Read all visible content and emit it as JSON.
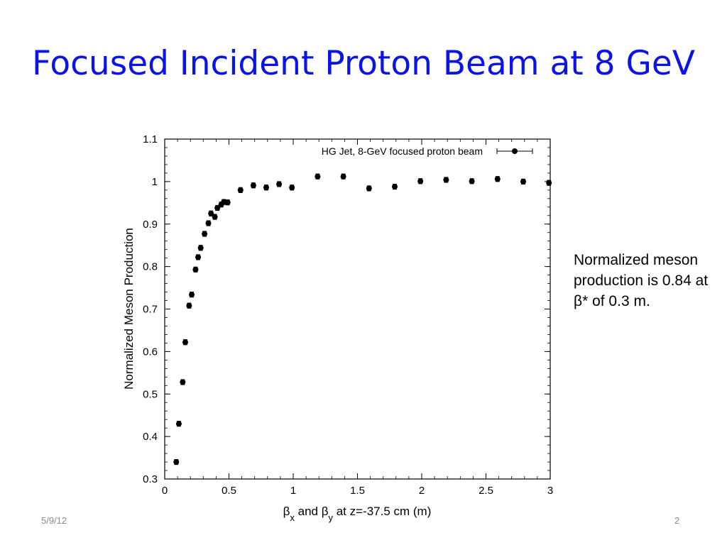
{
  "slide": {
    "title": "Focused Incident Proton Beam at 8 GeV",
    "note": "Normalized meson production is 0.84 at β* of 0.3 m.",
    "date": "5/9/12",
    "page": "2",
    "title_color": "#0b14e6"
  },
  "chart_data": {
    "type": "scatter",
    "title": "",
    "xlabel": "βx and βy at z=-37.5 cm (m)",
    "ylabel": "Normalized Meson Production",
    "xlim": [
      0,
      3
    ],
    "ylim": [
      0.3,
      1.1
    ],
    "xticks": [
      "0",
      "0.5",
      "1",
      "1.5",
      "2",
      "2.5",
      "3"
    ],
    "yticks": [
      "0.3",
      "0.4",
      "0.5",
      "0.6",
      "0.7",
      "0.8",
      "0.9",
      "1",
      "1.1"
    ],
    "legend_position": "top-right",
    "grid": false,
    "series": [
      {
        "name": "HG Jet, 8-GeV focused proton beam",
        "marker": "circle with error bars",
        "color": "#000000",
        "x": [
          0.09,
          0.11,
          0.14,
          0.16,
          0.19,
          0.21,
          0.24,
          0.26,
          0.28,
          0.31,
          0.34,
          0.36,
          0.39,
          0.41,
          0.44,
          0.46,
          0.49,
          0.59,
          0.69,
          0.79,
          0.89,
          0.99,
          1.19,
          1.39,
          1.59,
          1.79,
          1.99,
          2.19,
          2.39,
          2.59,
          2.79,
          2.99
        ],
        "y": [
          0.34,
          0.43,
          0.528,
          0.622,
          0.708,
          0.734,
          0.793,
          0.822,
          0.844,
          0.877,
          0.902,
          0.925,
          0.917,
          0.938,
          0.946,
          0.952,
          0.951,
          0.98,
          0.991,
          0.986,
          0.994,
          0.986,
          1.012,
          1.012,
          0.984,
          0.988,
          1.001,
          1.004,
          1.001,
          1.006,
          1.0,
          0.997
        ],
        "yerr": 0.006
      }
    ]
  }
}
